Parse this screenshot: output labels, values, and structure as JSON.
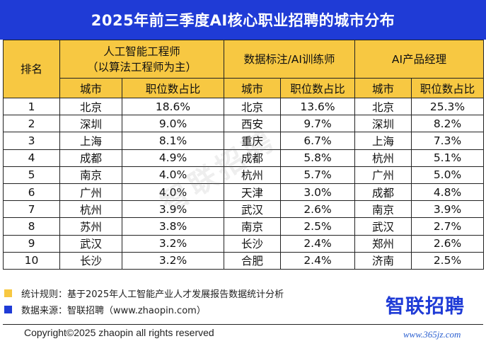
{
  "title": "2025年前三季度AI核心职业招聘的城市分布",
  "table": {
    "rank_header": "排名",
    "groups": [
      {
        "name_line1": "人工智能工程师",
        "name_line2": "（以算法工程师为主）"
      },
      {
        "name_line1": "数据标注/AI训练师",
        "name_line2": ""
      },
      {
        "name_line1": "AI产品经理",
        "name_line2": ""
      }
    ],
    "sub_city": "城市",
    "sub_share": "职位数占比",
    "rows": [
      {
        "rank": "1",
        "c1": "北京",
        "v1": "18.6%",
        "c2": "北京",
        "v2": "13.6%",
        "c3": "北京",
        "v3": "25.3%"
      },
      {
        "rank": "2",
        "c1": "深圳",
        "v1": "9.0%",
        "c2": "西安",
        "v2": "9.7%",
        "c3": "深圳",
        "v3": "8.2%"
      },
      {
        "rank": "3",
        "c1": "上海",
        "v1": "8.1%",
        "c2": "重庆",
        "v2": "6.7%",
        "c3": "上海",
        "v3": "7.3%"
      },
      {
        "rank": "4",
        "c1": "成都",
        "v1": "4.9%",
        "c2": "成都",
        "v2": "5.8%",
        "c3": "杭州",
        "v3": "5.1%"
      },
      {
        "rank": "5",
        "c1": "南京",
        "v1": "4.0%",
        "c2": "杭州",
        "v2": "5.7%",
        "c3": "广州",
        "v3": "5.0%"
      },
      {
        "rank": "6",
        "c1": "广州",
        "v1": "4.0%",
        "c2": "天津",
        "v2": "3.0%",
        "c3": "成都",
        "v3": "4.8%"
      },
      {
        "rank": "7",
        "c1": "杭州",
        "v1": "3.9%",
        "c2": "武汉",
        "v2": "2.6%",
        "c3": "南京",
        "v3": "3.9%"
      },
      {
        "rank": "8",
        "c1": "苏州",
        "v1": "3.8%",
        "c2": "南京",
        "v2": "2.5%",
        "c3": "武汉",
        "v3": "2.7%"
      },
      {
        "rank": "9",
        "c1": "武汉",
        "v1": "3.2%",
        "c2": "长沙",
        "v2": "2.4%",
        "c3": "郑州",
        "v3": "2.6%"
      },
      {
        "rank": "10",
        "c1": "长沙",
        "v1": "3.2%",
        "c2": "合肥",
        "v2": "2.4%",
        "c3": "济南",
        "v3": "2.5%"
      }
    ]
  },
  "watermark": "智联招聘",
  "notes": {
    "rule": "统计规则：基于2025年人工智能产业人才发展报告数据统计分析",
    "source": "数据来源：智联招聘（www.zhaopin.com）"
  },
  "logo": "智联招聘",
  "copyright": "Copyright©2025 zhaopin all rights reserved",
  "site": "www.365jz.com",
  "colors": {
    "accent_blue": "#1f3bd6",
    "header_yellow": "#f7c842"
  }
}
